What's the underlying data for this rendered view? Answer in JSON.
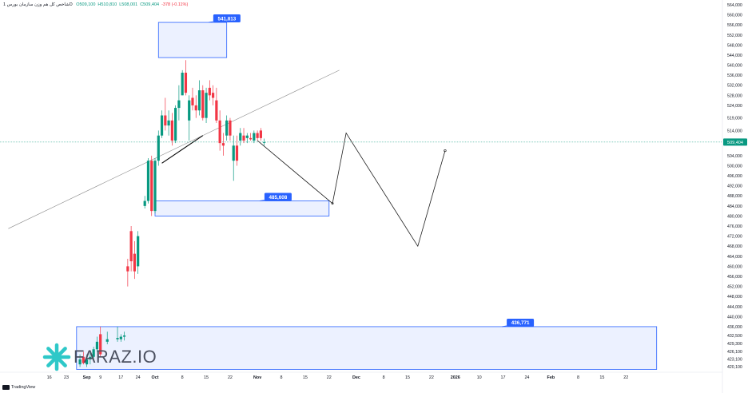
{
  "header": {
    "symbol": "شاخص کل هم وزن سازمان بورس 1D",
    "ohlc": [
      {
        "label": "O",
        "value": "509,100",
        "tone": "up"
      },
      {
        "label": "H",
        "value": "510,810",
        "tone": "up"
      },
      {
        "label": "L",
        "value": "508,001",
        "tone": "up"
      },
      {
        "label": "C",
        "value": "509,404",
        "tone": "up"
      },
      {
        "label": "",
        "value": "-378 (-0.11%)",
        "tone": "dn"
      }
    ]
  },
  "watermark": {
    "text": "FARAZ.IO",
    "icon": "snowflake-star-icon",
    "color": "#2ec8c8"
  },
  "footer": {
    "brand": "TradingView"
  },
  "colors": {
    "up": "#089981",
    "down": "#f23645",
    "zone": "#2962ff",
    "price_line": "#089981"
  },
  "chart_data": {
    "type": "candlestick",
    "y_axis": {
      "position": "right",
      "ylim": [
        418,
        567
      ],
      "ticks": [
        "564,000",
        "560,000",
        "556,000",
        "552,000",
        "548,000",
        "544,000",
        "540,000",
        "536,000",
        "532,000",
        "528,000",
        "524,000",
        "519,000",
        "514,000",
        "509,404",
        "504,000",
        "500,000",
        "496,000",
        "492,000",
        "488,000",
        "484,000",
        "480,000",
        "476,000",
        "472,000",
        "468,000",
        "464,000",
        "460,000",
        "456,000",
        "452,000",
        "448,000",
        "444,000",
        "440,000",
        "436,000",
        "432,500",
        "429,300",
        "426,100",
        "423,100",
        "420,100"
      ],
      "tick_values": [
        564,
        560,
        556,
        552,
        548,
        544,
        540,
        536,
        532,
        528,
        524,
        519,
        514,
        509.404,
        504,
        500,
        496,
        492,
        488,
        484,
        480,
        476,
        472,
        468,
        464,
        460,
        456,
        452,
        448,
        444,
        440,
        436,
        432.5,
        429.3,
        426.1,
        423.1,
        420.1
      ]
    },
    "x_axis": {
      "labels": [
        "16",
        "23",
        "Sep",
        "9",
        "17",
        "24",
        "Oct",
        "8",
        "15",
        "22",
        "Nov",
        "8",
        "15",
        "22",
        "Dec",
        "8",
        "15",
        "22",
        "2026",
        "10",
        "17",
        "24",
        "Feb",
        "8",
        "15",
        "22"
      ],
      "day_index": [
        -18,
        -13,
        -7,
        -3,
        3,
        8,
        13,
        21,
        28,
        35,
        43,
        50,
        57,
        64,
        72,
        80,
        87,
        94,
        101,
        108,
        115,
        122,
        129,
        137,
        144,
        151
      ]
    },
    "candles": [
      {
        "d": -9,
        "o": 421,
        "h": 425,
        "l": 420,
        "c": 423
      },
      {
        "d": -8,
        "o": 424,
        "h": 426,
        "l": 421,
        "c": 421.5
      },
      {
        "d": -7,
        "o": 421,
        "h": 425,
        "l": 420,
        "c": 423
      },
      {
        "d": -6,
        "o": 423,
        "h": 426,
        "l": 421,
        "c": 424
      },
      {
        "d": -5,
        "o": 424,
        "h": 428,
        "l": 423,
        "c": 427
      },
      {
        "d": -4,
        "o": 427,
        "h": 432,
        "l": 426,
        "c": 430
      },
      {
        "d": -3,
        "o": 433,
        "h": 436,
        "l": 424,
        "c": 425
      },
      {
        "d": -1,
        "o": 430,
        "h": 434,
        "l": 429,
        "c": 431
      },
      {
        "d": 2,
        "o": 431,
        "h": 436,
        "l": 430,
        "c": 431.5
      },
      {
        "d": 3,
        "o": 431,
        "h": 433,
        "l": 430,
        "c": 432
      },
      {
        "d": 4,
        "o": 432,
        "h": 434,
        "l": 430.5,
        "c": 432.5
      },
      {
        "d": 5,
        "o": 460,
        "h": 463,
        "l": 452,
        "c": 458
      },
      {
        "d": 6,
        "o": 474,
        "h": 476,
        "l": 458,
        "c": 462
      },
      {
        "d": 7,
        "o": 465,
        "h": 470,
        "l": 455,
        "c": 458
      },
      {
        "d": 8,
        "o": 460,
        "h": 474,
        "l": 457,
        "c": 472
      },
      {
        "d": 10,
        "o": 484,
        "h": 488,
        "l": 483,
        "c": 486
      },
      {
        "d": 11,
        "o": 486,
        "h": 503,
        "l": 485,
        "c": 502
      },
      {
        "d": 12,
        "o": 502,
        "h": 504,
        "l": 480,
        "c": 482
      },
      {
        "d": 13,
        "o": 482,
        "h": 503,
        "l": 481,
        "c": 502
      },
      {
        "d": 14,
        "o": 502,
        "h": 514,
        "l": 500,
        "c": 512
      },
      {
        "d": 15,
        "o": 512,
        "h": 522,
        "l": 511,
        "c": 520
      },
      {
        "d": 16,
        "o": 520,
        "h": 527,
        "l": 514,
        "c": 516
      },
      {
        "d": 17,
        "o": 516,
        "h": 522,
        "l": 512,
        "c": 518
      },
      {
        "d": 18,
        "o": 518,
        "h": 521,
        "l": 508,
        "c": 510
      },
      {
        "d": 19,
        "o": 510,
        "h": 524,
        "l": 509,
        "c": 523
      },
      {
        "d": 20,
        "o": 523,
        "h": 532,
        "l": 518,
        "c": 526
      },
      {
        "d": 21,
        "o": 528,
        "h": 538,
        "l": 528,
        "c": 537
      },
      {
        "d": 22,
        "o": 537,
        "h": 542,
        "l": 528,
        "c": 529
      },
      {
        "d": 23,
        "o": 518,
        "h": 528,
        "l": 510,
        "c": 526
      },
      {
        "d": 24,
        "o": 527,
        "h": 531,
        "l": 522,
        "c": 524
      },
      {
        "d": 25,
        "o": 524,
        "h": 528,
        "l": 519,
        "c": 522
      },
      {
        "d": 26,
        "o": 522,
        "h": 534,
        "l": 520,
        "c": 530
      },
      {
        "d": 27,
        "o": 530,
        "h": 532,
        "l": 518,
        "c": 519
      },
      {
        "d": 28,
        "o": 519,
        "h": 531,
        "l": 517,
        "c": 529
      },
      {
        "d": 29,
        "o": 531,
        "h": 534,
        "l": 526,
        "c": 528
      },
      {
        "d": 30,
        "o": 529,
        "h": 532,
        "l": 524,
        "c": 527
      },
      {
        "d": 31,
        "o": 526,
        "h": 531,
        "l": 517,
        "c": 518
      },
      {
        "d": 32,
        "o": 518,
        "h": 522,
        "l": 506,
        "c": 509
      },
      {
        "d": 33,
        "o": 509,
        "h": 513,
        "l": 504,
        "c": 508
      },
      {
        "d": 34,
        "o": 512,
        "h": 520,
        "l": 510,
        "c": 518
      },
      {
        "d": 35,
        "o": 518,
        "h": 519,
        "l": 510,
        "c": 512
      },
      {
        "d": 36,
        "o": 502,
        "h": 512,
        "l": 494,
        "c": 508
      },
      {
        "d": 37,
        "o": 508,
        "h": 512,
        "l": 500,
        "c": 502
      },
      {
        "d": 38,
        "o": 510,
        "h": 515,
        "l": 508,
        "c": 513
      },
      {
        "d": 39,
        "o": 512,
        "h": 515,
        "l": 509,
        "c": 510
      },
      {
        "d": 40,
        "o": 511,
        "h": 513,
        "l": 509,
        "c": 512
      },
      {
        "d": 41,
        "o": 511,
        "h": 513,
        "l": 510,
        "c": 510.5
      },
      {
        "d": 42,
        "o": 510,
        "h": 514,
        "l": 509,
        "c": 513
      },
      {
        "d": 43,
        "o": 513,
        "h": 514,
        "l": 510,
        "c": 511
      },
      {
        "d": 44,
        "o": 514,
        "h": 515,
        "l": 510,
        "c": 511
      },
      {
        "d": 45,
        "o": 509.1,
        "h": 510.81,
        "l": 508.001,
        "c": 509.404
      }
    ],
    "last_price": {
      "value": 509.404,
      "label": "509,404"
    },
    "zones": [
      {
        "from": 13,
        "to": 64,
        "top": 486,
        "bottom": 480,
        "label": "485,608",
        "label_at": 46
      },
      {
        "from": 14,
        "to": 34,
        "top": 557,
        "bottom": 543,
        "label": "541,813",
        "label_at": 31
      },
      {
        "from": -10,
        "to": 160,
        "top": 436,
        "bottom": 419,
        "label": "436,771",
        "label_at": 117
      }
    ],
    "trendlines": [
      {
        "points": [
          [
            -30,
            475
          ],
          [
            67,
            538
          ]
        ],
        "color": "#8a8a8a"
      },
      {
        "points": [
          [
            15,
            501
          ],
          [
            27,
            512
          ]
        ],
        "color": "#000000"
      }
    ],
    "projection": [
      [
        43,
        510
      ],
      [
        65,
        485
      ],
      [
        69,
        513
      ],
      [
        90,
        468
      ],
      [
        98,
        506
      ]
    ],
    "grid": false
  }
}
